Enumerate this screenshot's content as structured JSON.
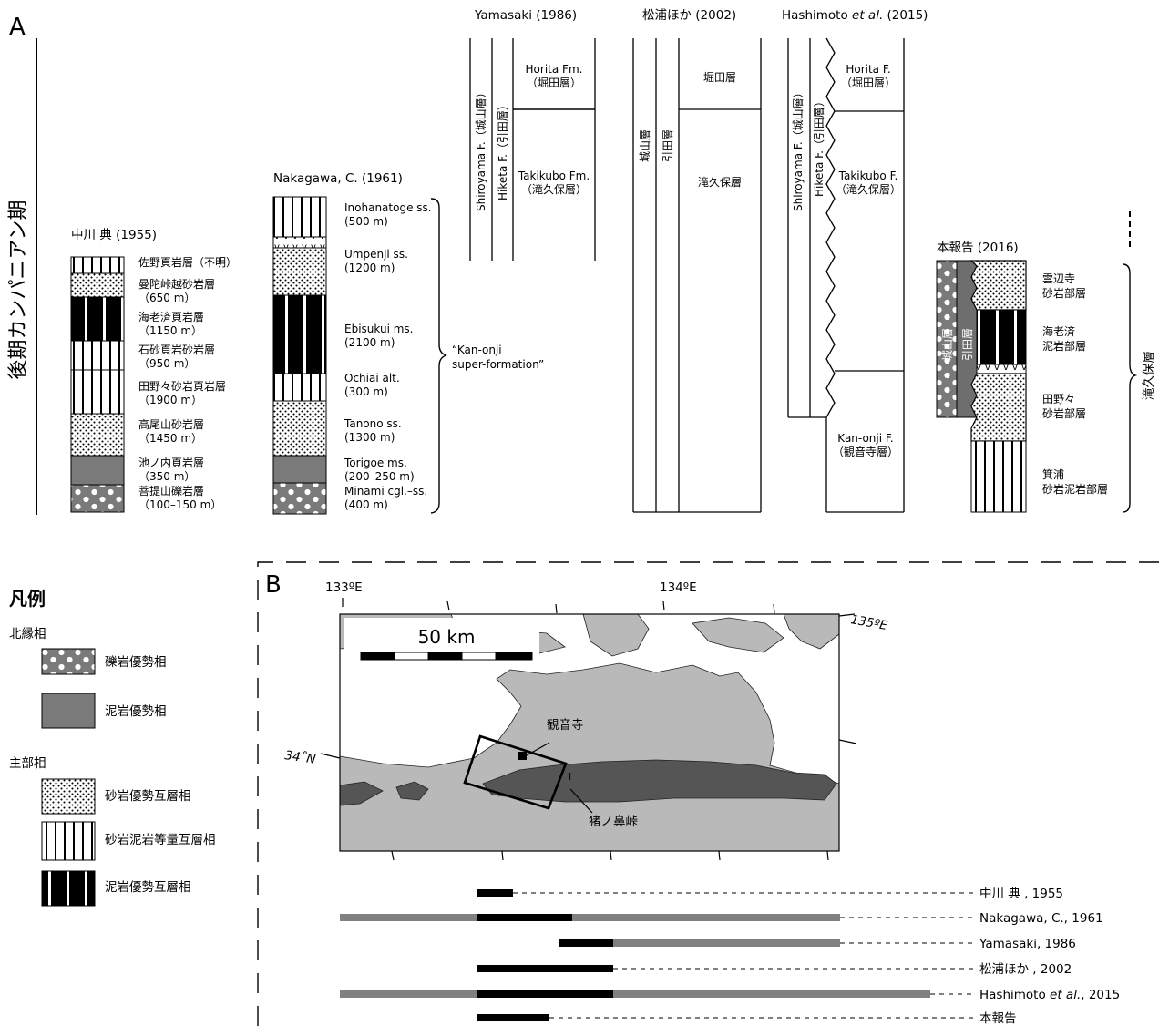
{
  "panel_a": {
    "label": "A",
    "period": "後期カンパニアン期",
    "nakagawa1955": {
      "title": "中川 典 (1955)",
      "units": [
        {
          "name": "佐野頁岩層（不明）",
          "thick": ""
        },
        {
          "name": "曼陀峠越砂岩層",
          "thick": "（650 m）"
        },
        {
          "name": "海老済頁岩層",
          "thick": "（1150 m）"
        },
        {
          "name": "石砂頁岩砂岩層",
          "thick": "（950 m）"
        },
        {
          "name": "田野々砂岩頁岩層",
          "thick": "（1900 m）"
        },
        {
          "name": "高尾山砂岩層",
          "thick": "（1450 m）"
        },
        {
          "name": "池ノ内頁岩層",
          "thick": "（350 m）"
        },
        {
          "name": "菩提山礫岩層",
          "thick": "（100–150 m）"
        }
      ]
    },
    "nakagawa1961": {
      "title": "Nakagawa, C. (1961)",
      "units": [
        {
          "name": "Inohanatoge ss.",
          "thick": "(500 m)"
        },
        {
          "name": "Umpenji ss.",
          "thick": "(1200 m)"
        },
        {
          "name": "Ebisukui ms.",
          "thick": "(2100 m)"
        },
        {
          "name": "Ochiai alt.",
          "thick": "(300 m)"
        },
        {
          "name": "Tanono ss.",
          "thick": "(1300 m)"
        },
        {
          "name": "Torigoe ms.",
          "thick": "(200–250 m)"
        },
        {
          "name": "Minami cgl.–ss.",
          "thick": "(400 m)"
        }
      ],
      "group": [
        "“Kan-onji",
        "super-formation”"
      ]
    },
    "yamasaki1986": {
      "title": "Yamasaki (1986)",
      "shiroyama": "Shiroyama F.（城山層）",
      "hiketa": "Hiketa F.（引田層）",
      "horita": [
        "Horita Fm.",
        "（堀田層）"
      ],
      "takikubo": [
        "Takikubo Fm.",
        "（滝久保層）"
      ]
    },
    "matsuura2002": {
      "title": "松浦ほか (2002)",
      "shiroyama": "城山層",
      "hiketa": "引田層",
      "horita": "堀田層",
      "takikubo": "滝久保層"
    },
    "hashimoto2015": {
      "title_pre": "Hashimoto ",
      "title_em": "et al.",
      "title_post": " (2015)",
      "shiroyama": "Shiroyama F.（城山層）",
      "hiketa": "Hiketa F.（引田層）",
      "horita": [
        "Horita F.",
        "（堀田層）"
      ],
      "takikubo": [
        "Takikubo F.",
        "（滝久保層）"
      ],
      "kanonji": [
        "Kan-onji F.",
        "（観音寺層）"
      ]
    },
    "this2016": {
      "title": "本報告 (2016)",
      "shiroyama": "城山層",
      "hiketa": "引田層",
      "units": [
        [
          "雲辺寺",
          "砂岩部層"
        ],
        [
          "海老済",
          "泥岩部層"
        ],
        [
          "田野々",
          "砂岩部層"
        ],
        [
          "箕浦",
          "砂岩泥岩部層"
        ]
      ],
      "group": "滝久保層"
    }
  },
  "legend": {
    "title": "凡例",
    "northern": "北縁相",
    "cong": "礫岩優勢相",
    "mud": "泥岩優勢相",
    "main": "主部相",
    "ss_alt": "砂岩優勢互層相",
    "equal_alt": "砂岩泥岩等量互層相",
    "mud_alt": "泥岩優勢互層相"
  },
  "panel_b": {
    "label": "B",
    "lon133": "133ºE",
    "lon134": "134ºE",
    "lon135": "135ºE",
    "lat34": "34˚N",
    "scale": "50 km",
    "kanonji": "観音寺",
    "inohana": "猪ノ鼻峠",
    "refs": [
      {
        "pre": "中川 典 , 1955",
        "em": "",
        "post": ""
      },
      {
        "pre": "Nakagawa, C., 1961",
        "em": "",
        "post": ""
      },
      {
        "pre": "Yamasaki, 1986",
        "em": "",
        "post": ""
      },
      {
        "pre": "松浦ほか , 2002",
        "em": "",
        "post": ""
      },
      {
        "pre": "Hashimoto ",
        "em": "et al.",
        "post": ", 2015"
      },
      {
        "pre": "本報告",
        "em": "",
        "post": ""
      }
    ]
  }
}
